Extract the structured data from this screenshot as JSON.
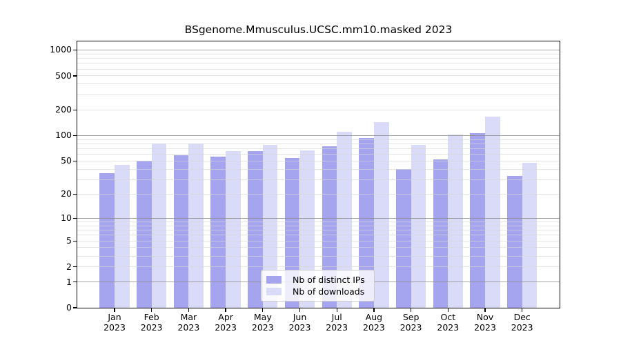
{
  "title": "BSgenome.Mmusculus.UCSC.mm10.masked 2023",
  "chart_data": {
    "type": "bar",
    "title": "BSgenome.Mmusculus.UCSC.mm10.masked 2023",
    "xlabel": "",
    "ylabel": "",
    "x_categories": [
      "Jan",
      "Feb",
      "Mar",
      "Apr",
      "May",
      "Jun",
      "Jul",
      "Aug",
      "Sep",
      "Oct",
      "Nov",
      "Dec"
    ],
    "x_year": "2023",
    "series": [
      {
        "name": "Nb of distinct IPs",
        "color": "#a4a4ef",
        "values": [
          36,
          50,
          59,
          56,
          65,
          54,
          75,
          93,
          40,
          52,
          107,
          33
        ]
      },
      {
        "name": "Nb of downloads",
        "color": "#dadaf9",
        "values": [
          45,
          81,
          80,
          66,
          78,
          67,
          110,
          145,
          77,
          102,
          168,
          48
        ]
      }
    ],
    "y_scale": "log10(value+1) pseudo-log",
    "ylim": [
      0,
      1260
    ],
    "y_ticks": [
      0,
      1,
      2,
      5,
      10,
      20,
      50,
      100,
      200,
      500,
      1000
    ],
    "y_minor_gridlines": [
      2,
      3,
      4,
      5,
      6,
      7,
      8,
      9,
      20,
      30,
      40,
      50,
      60,
      70,
      80,
      90,
      200,
      300,
      400,
      500,
      600,
      700,
      800,
      900
    ],
    "y_decade_gridlines": [
      1,
      10,
      100,
      1000
    ],
    "grid": true,
    "legend_position": "bottom-center"
  }
}
